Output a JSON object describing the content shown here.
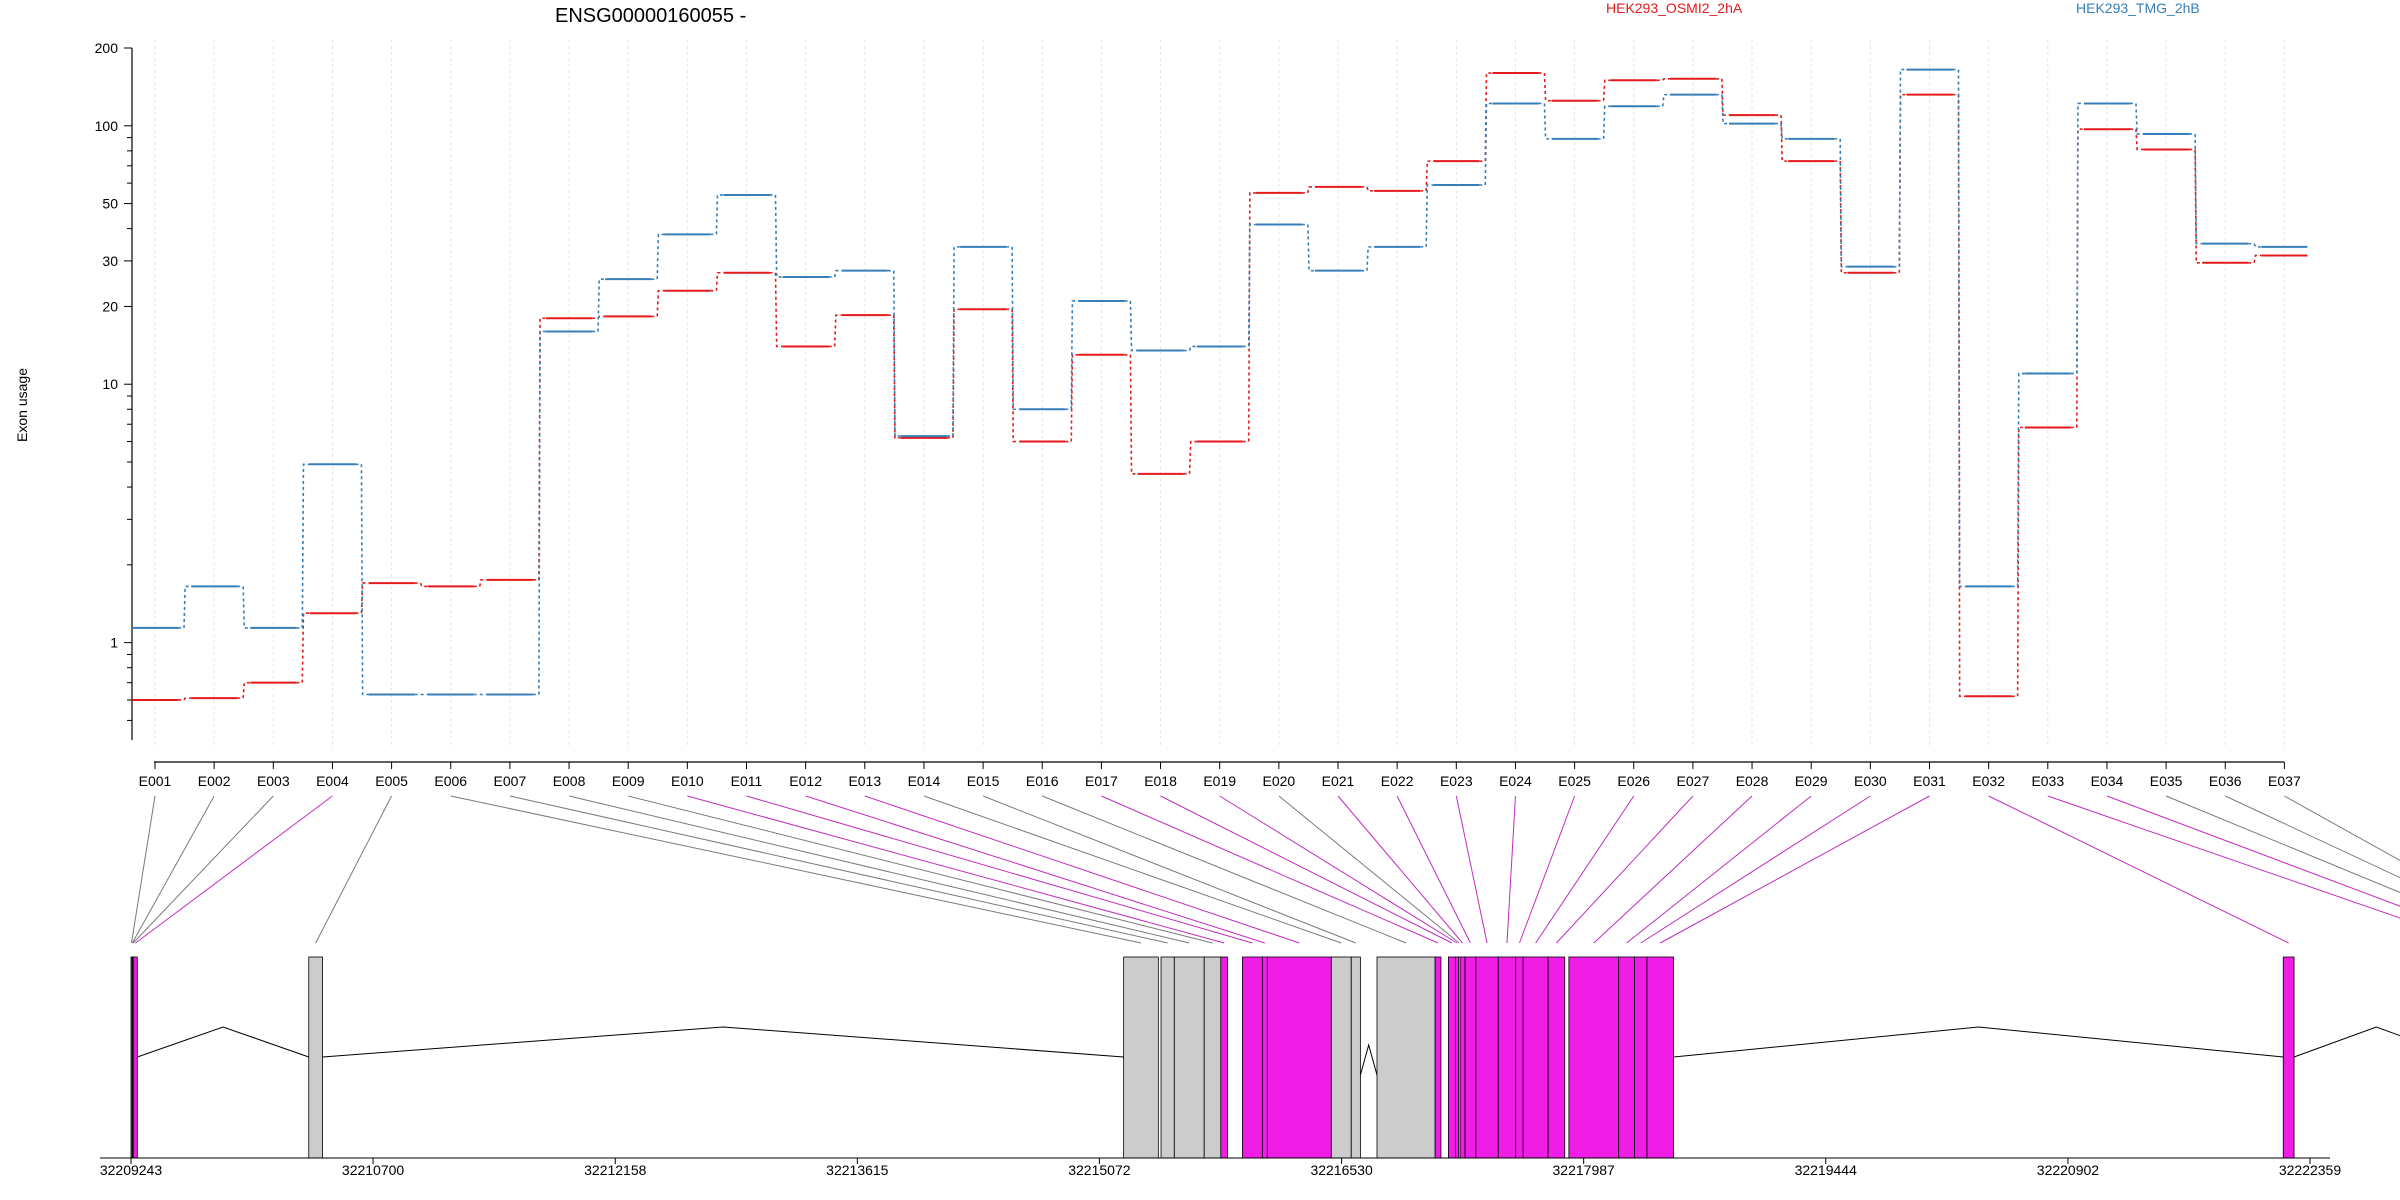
{
  "chart_data": {
    "type": "line",
    "title": "ENSG00000160055 -",
    "ylabel": "Exon usage",
    "xlabel": "",
    "y_scale": "log",
    "ylim": [
      0.42,
      200
    ],
    "y_ticks": [
      1,
      10,
      20,
      30,
      50,
      100,
      200
    ],
    "grid": "vertical dotted lines per exon",
    "legend_placement": "top",
    "categories": [
      "E001",
      "E002",
      "E003",
      "E004",
      "E005",
      "E006",
      "E007",
      "E008",
      "E009",
      "E010",
      "E011",
      "E012",
      "E013",
      "E014",
      "E015",
      "E016",
      "E017",
      "E018",
      "E019",
      "E020",
      "E021",
      "E022",
      "E023",
      "E024",
      "E025",
      "E026",
      "E027",
      "E028",
      "E029",
      "E030",
      "E031",
      "E032",
      "E033",
      "E034",
      "E035",
      "E036",
      "E037"
    ],
    "series": [
      {
        "name": "HEK293_OSMI2_2hA",
        "color": "#e41a1c",
        "values": [
          0.6,
          0.61,
          0.7,
          1.3,
          1.7,
          1.65,
          1.75,
          18,
          18.3,
          23,
          27,
          14,
          18.5,
          6.2,
          19.5,
          6,
          13,
          4.5,
          6,
          55,
          58,
          56,
          73,
          160,
          125,
          150,
          152,
          110,
          73,
          27,
          132,
          0.62,
          6.8,
          97,
          81,
          29.5,
          31.5
        ]
      },
      {
        "name": "HEK293_TMG_2hB",
        "color": "#377eb8",
        "values": [
          1.14,
          1.65,
          1.14,
          4.9,
          0.63,
          0.63,
          0.63,
          16,
          25.5,
          38,
          54,
          26,
          27.5,
          6.3,
          34,
          8,
          21,
          13.5,
          14,
          41.5,
          27.5,
          34,
          59,
          122,
          89,
          119,
          132,
          102,
          89,
          28.5,
          165,
          1.65,
          11,
          122,
          93,
          35,
          34
        ]
      }
    ],
    "gene_model": {
      "axis_ticks": [
        "32209243",
        "32210700",
        "32212158",
        "32213615",
        "32215072",
        "32216530",
        "32217987",
        "32219444",
        "32220902",
        "32222359"
      ],
      "highlight_color": "#f01de6",
      "exon_color": "#cccccc",
      "highlighted_exons": [
        "E004",
        "E010",
        "E011",
        "E012",
        "E013",
        "E017",
        "E018",
        "E019",
        "E021",
        "E022",
        "E023",
        "E024",
        "E025",
        "E026",
        "E027",
        "E028",
        "E029",
        "E030",
        "E031",
        "E032",
        "E033",
        "E034"
      ]
    }
  }
}
